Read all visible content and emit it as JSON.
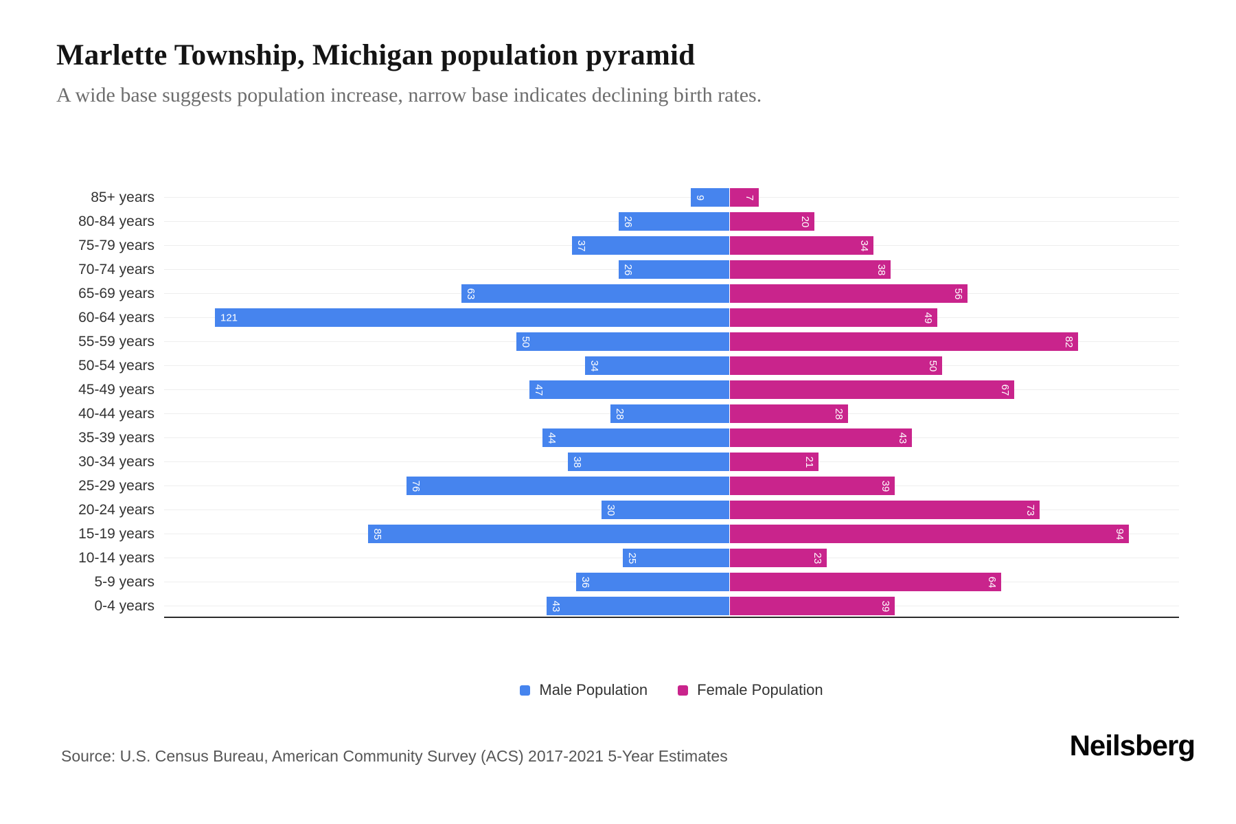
{
  "title": "Marlette Township, Michigan population pyramid",
  "subtitle": "A wide base suggests population increase, narrow base indicates declining birth rates.",
  "source": "Source: U.S. Census Bureau, American Community Survey (ACS) 2017-2021 5-Year Estimates",
  "brand": "Neilsberg",
  "colors": {
    "male": "#4684ee",
    "female": "#c9248c",
    "gridline": "#eeeeee",
    "axis": "#2b2b2b",
    "title": "#141414",
    "subtitle": "#6d6d6d",
    "value_label": "#ffffff"
  },
  "legend": {
    "items": [
      {
        "label": "Male Population",
        "color": "#4684ee"
      },
      {
        "label": "Female Population",
        "color": "#c9248c"
      }
    ]
  },
  "chart_data": {
    "type": "bar",
    "subtype": "population-pyramid",
    "orientation": "horizontal",
    "title": "Marlette Township, Michigan population pyramid",
    "categories": [
      "85+ years",
      "80-84 years",
      "75-79 years",
      "70-74 years",
      "65-69 years",
      "60-64 years",
      "55-59 years",
      "50-54 years",
      "45-49 years",
      "40-44 years",
      "35-39 years",
      "30-34 years",
      "25-29 years",
      "20-24 years",
      "15-19 years",
      "10-14 years",
      "5-9 years",
      "0-4 years"
    ],
    "series": [
      {
        "name": "Male Population",
        "color": "#4684ee",
        "values": [
          9,
          26,
          37,
          26,
          63,
          121,
          50,
          34,
          47,
          28,
          44,
          38,
          76,
          30,
          85,
          25,
          36,
          43
        ]
      },
      {
        "name": "Female Population",
        "color": "#c9248c",
        "values": [
          7,
          20,
          34,
          38,
          56,
          49,
          82,
          50,
          67,
          28,
          43,
          21,
          39,
          73,
          94,
          23,
          64,
          39
        ]
      }
    ],
    "value_labels": "inside-bar-outer-end, white, rotated 90deg (horizontal when >= 100)",
    "grid": "light horizontal line per category row",
    "legend_position": "bottom-center",
    "axis_line": "bottom only, no tick labels"
  }
}
